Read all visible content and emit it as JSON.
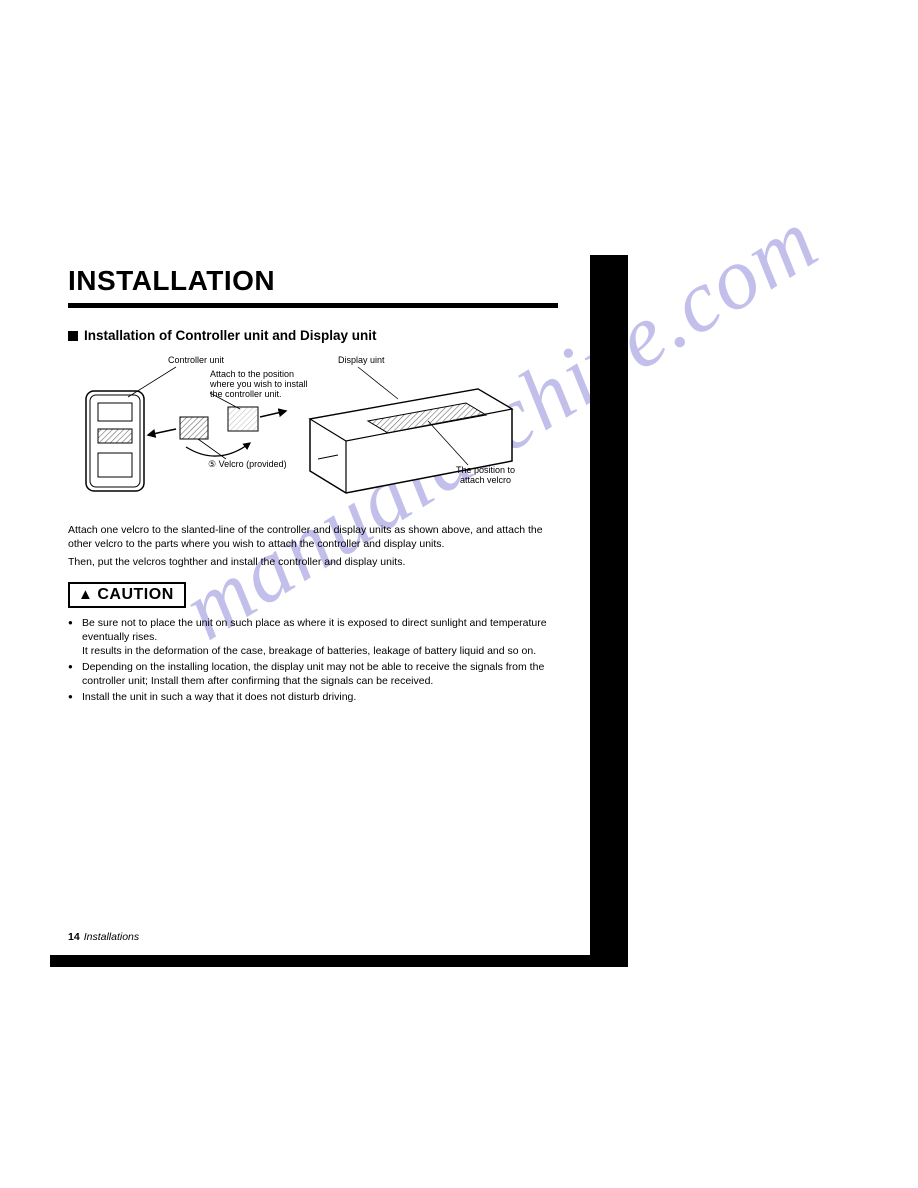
{
  "page": {
    "title": "INSTALLATION",
    "subheading": "Installation of Controller unit and Display unit",
    "page_number": "14",
    "footer_text": "Installations"
  },
  "diagram": {
    "labels": {
      "controller": "Controller unit",
      "display": "Display uint",
      "attach_note_l1": "Attach to the position",
      "attach_note_l2": "where you wish to install",
      "attach_note_l3": "the controller unit.",
      "velcro": "⑤ Velcro (provided)",
      "position_l1": "The position to",
      "position_l2": "attach velcro"
    },
    "stroke_color": "#000000",
    "hatch_color": "#6b6b6b",
    "stroke_width_thin": 1,
    "stroke_width_med": 1.5
  },
  "body": {
    "p1": "Attach one velcro to the slanted-line of the controller and display units as shown above, and attach the other velcro to the parts where you wish to attach the controller and display units.",
    "p2": "Then, put the velcros toghther and install the controller and display units."
  },
  "caution": {
    "heading": "CAUTION",
    "items": [
      "Be sure not to place the unit on such place as where it is exposed to direct sunlight and temperature eventually rises.\nIt results in the deformation of the case, breakage of batteries, leakage of battery liquid and so on.",
      "Depending on the installing location, the display unit may not be able to receive the signals from the controller unit; Install them after confirming that the signals can be received.",
      "Install the unit in such a way that it does not disturb driving."
    ]
  },
  "watermark": {
    "text": "manualarchive.com",
    "color": "#b8b5e8",
    "font_size": 88,
    "rotation_deg": -32
  },
  "colors": {
    "black": "#000000",
    "white": "#ffffff"
  }
}
